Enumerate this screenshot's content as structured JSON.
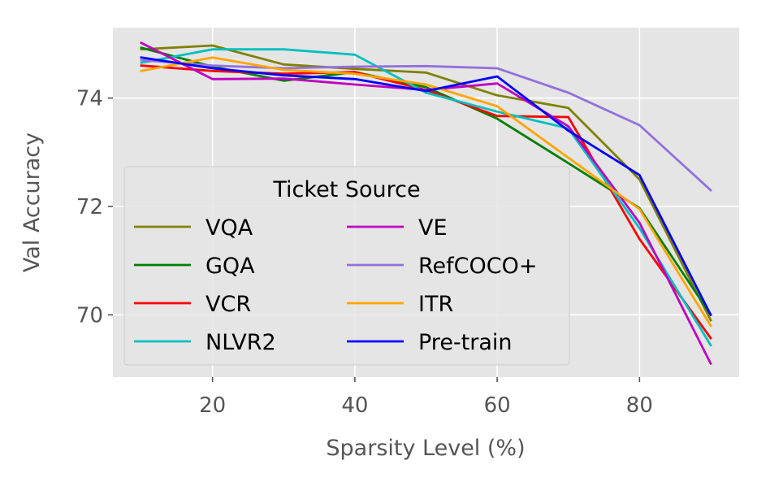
{
  "chart_data": {
    "type": "line",
    "title": "",
    "xlabel": "Sparsity Level (%)",
    "ylabel": "Val Accuracy",
    "xlim": [
      6,
      94
    ],
    "ylim": [
      68.85,
      75.3
    ],
    "xticks": [
      20,
      40,
      60,
      80
    ],
    "yticks": [
      70,
      72,
      74
    ],
    "grid": true,
    "legend": {
      "title": "Ticket Source",
      "location": "lower-left",
      "columns": 2
    },
    "x": [
      10,
      20,
      30,
      40,
      50,
      60,
      70,
      80,
      90
    ],
    "series": [
      {
        "name": "VQA",
        "color": "#808000",
        "values": [
          74.9,
          74.97,
          74.62,
          74.54,
          74.47,
          74.05,
          73.82,
          72.5,
          69.9
        ]
      },
      {
        "name": "GQA",
        "color": "#008000",
        "values": [
          74.93,
          74.58,
          74.32,
          74.48,
          74.2,
          73.62,
          72.8,
          71.97,
          70.0
        ]
      },
      {
        "name": "VCR",
        "color": "#ff0000",
        "values": [
          74.6,
          74.5,
          74.45,
          74.48,
          74.15,
          73.67,
          73.65,
          71.4,
          69.57
        ]
      },
      {
        "name": "NLVR2",
        "color": "#00bfbf",
        "values": [
          74.65,
          74.9,
          74.9,
          74.8,
          74.1,
          73.75,
          73.44,
          71.6,
          69.44
        ]
      },
      {
        "name": "VE",
        "color": "#bf00bf",
        "values": [
          75.02,
          74.35,
          74.36,
          74.25,
          74.15,
          74.27,
          73.48,
          71.7,
          69.1
        ]
      },
      {
        "name": "RefCOCO+",
        "color": "#9370db",
        "values": [
          74.7,
          74.6,
          74.55,
          74.58,
          74.59,
          74.55,
          74.1,
          73.5,
          72.3
        ]
      },
      {
        "name": "ITR",
        "color": "#ffa500",
        "values": [
          74.5,
          74.75,
          74.52,
          74.45,
          74.25,
          73.85,
          72.9,
          71.95,
          69.8
        ]
      },
      {
        "name": "Pre-train",
        "color": "#0000ff",
        "values": [
          74.75,
          74.55,
          74.42,
          74.35,
          74.13,
          74.4,
          73.4,
          72.58,
          70.0
        ]
      }
    ]
  }
}
